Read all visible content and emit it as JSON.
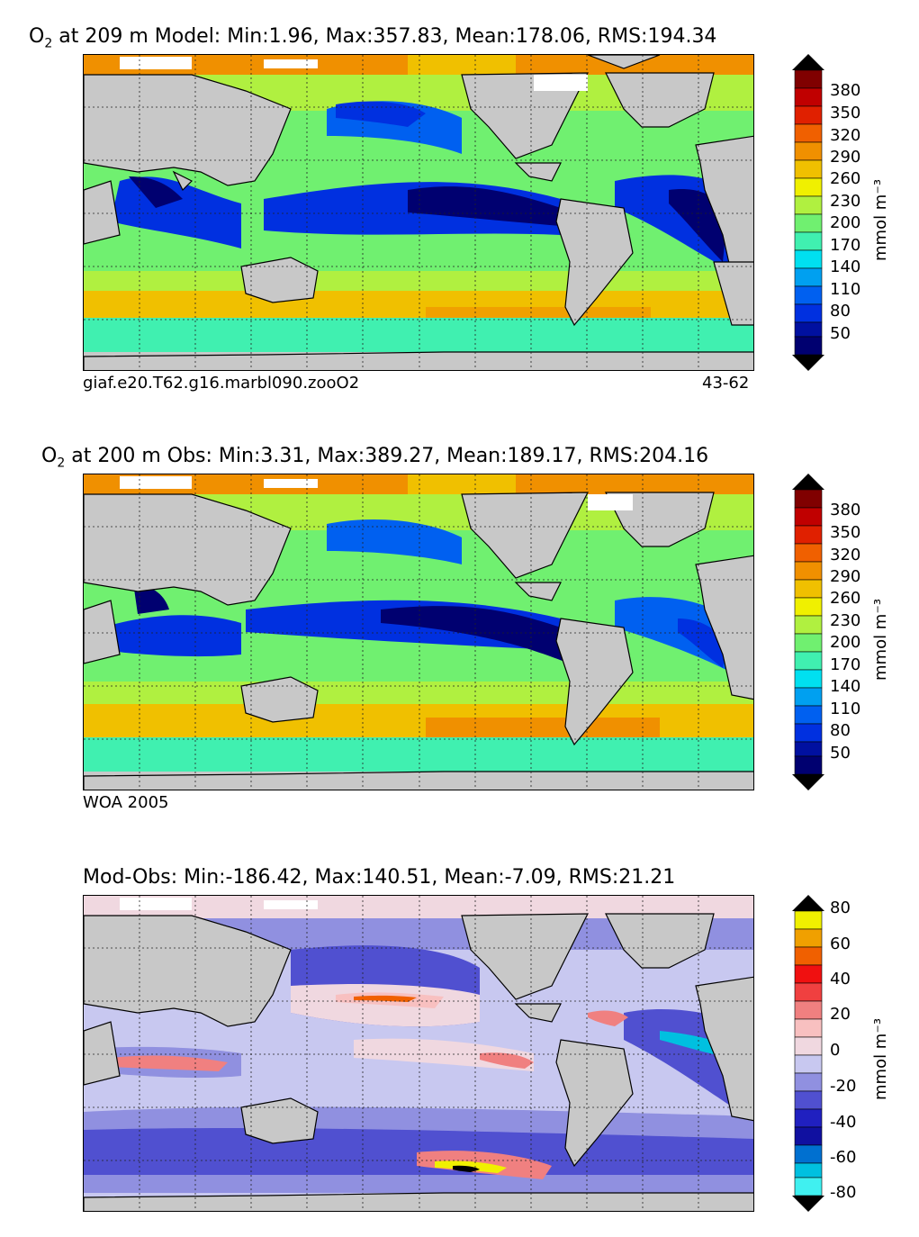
{
  "panels": [
    {
      "title_pre": "O",
      "title_sub": "2",
      "title_post": "  at 209 m Model: Min:1.96, Max:357.83, Mean:178.06, RMS:194.34",
      "footer_left": "giaf.e20.T62.g16.marbl090.zooO2",
      "footer_right": "43-62",
      "colorbar_ticks": [
        "380",
        "350",
        "320",
        "290",
        "260",
        "230",
        "200",
        "170",
        "140",
        "110",
        "80",
        "50"
      ],
      "colorbar_unit": "mmol m⁻³"
    },
    {
      "title_pre": "O",
      "title_sub": "2",
      "title_post": "  at 200 m Obs: Min:3.31, Max:389.27, Mean:189.17, RMS:204.16",
      "footer_left": "WOA 2005",
      "footer_right": "",
      "colorbar_ticks": [
        "380",
        "350",
        "320",
        "290",
        "260",
        "230",
        "200",
        "170",
        "140",
        "110",
        "80",
        "50"
      ],
      "colorbar_unit": "mmol m⁻³"
    },
    {
      "title_pre": "",
      "title_sub": "",
      "title_post": "Mod-Obs: Min:-186.42, Max:140.51, Mean:-7.09, RMS:21.21",
      "footer_left": "",
      "footer_right": "",
      "colorbar_ticks": [
        "80",
        "60",
        "40",
        "20",
        "0",
        "-20",
        "-40",
        "-60",
        "-80"
      ],
      "colorbar_unit": "mmol m⁻³"
    }
  ],
  "colors": {
    "abs_colorbar": [
      "#000070",
      "#0010a0",
      "#0030e0",
      "#0060f0",
      "#00a0f0",
      "#00e0f0",
      "#40f0b0",
      "#70f070",
      "#b0f040",
      "#f0f000",
      "#f0c000",
      "#f09000",
      "#f06000",
      "#e02000",
      "#c00000",
      "#800000"
    ],
    "diff_colorbar": [
      "#40f0f0",
      "#00c0e0",
      "#0070d0",
      "#1010a0",
      "#2020c0",
      "#5050d0",
      "#9090e0",
      "#c8c8f0",
      "#f0d8e0",
      "#f8c0c0",
      "#f08080",
      "#f04040",
      "#f01010",
      "#f06000",
      "#f0a000",
      "#f0f000"
    ],
    "land": "#c8c8c8"
  }
}
